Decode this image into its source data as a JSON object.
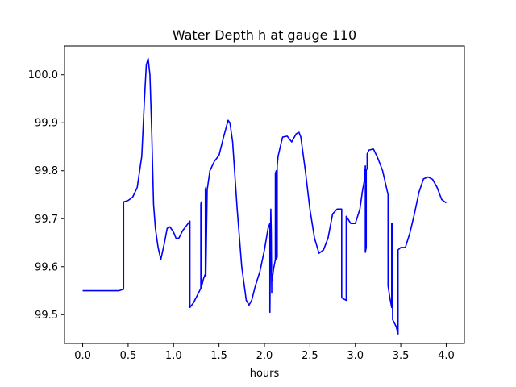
{
  "chart_data": {
    "type": "line",
    "title": "Water Depth h at gauge 110",
    "xlabel": "hours",
    "ylabel": "",
    "xlim": [
      -0.2,
      4.2
    ],
    "ylim": [
      99.44,
      100.06
    ],
    "xticks": [
      0.0,
      0.5,
      1.0,
      1.5,
      2.0,
      2.5,
      3.0,
      3.5,
      4.0
    ],
    "xtick_labels": [
      "0.0",
      "0.5",
      "1.0",
      "1.5",
      "2.0",
      "2.5",
      "3.0",
      "3.5",
      "4.0"
    ],
    "yticks": [
      99.5,
      99.6,
      99.7,
      99.8,
      99.9,
      100.0
    ],
    "ytick_labels": [
      "99.5",
      "99.6",
      "99.7",
      "99.8",
      "99.9",
      "100.0"
    ],
    "grid": false,
    "color": "#0000ff",
    "series": [
      {
        "x": [
          0.0,
          0.2,
          0.4,
          0.45,
          0.45,
          0.5,
          0.55,
          0.6,
          0.65,
          0.68,
          0.7,
          0.72,
          0.74,
          0.76,
          0.78,
          0.8,
          0.83,
          0.86,
          0.9,
          0.93,
          0.96,
          1.0,
          1.03,
          1.06,
          1.1,
          1.14,
          1.18,
          1.18,
          1.22,
          1.26,
          1.3,
          1.3,
          1.305,
          1.305,
          1.31,
          1.33,
          1.35,
          1.35,
          1.355,
          1.355,
          1.37,
          1.4,
          1.45,
          1.5,
          1.55,
          1.6,
          1.62,
          1.65,
          1.7,
          1.75,
          1.8,
          1.83,
          1.86,
          1.9,
          1.95,
          2.0,
          2.04,
          2.06,
          2.06,
          2.065,
          2.07,
          2.075,
          2.08,
          2.08,
          2.09,
          2.1,
          2.12,
          2.12,
          2.13,
          2.13,
          2.14,
          2.14,
          2.15,
          2.18,
          2.2,
          2.25,
          2.3,
          2.35,
          2.38,
          2.4,
          2.45,
          2.5,
          2.55,
          2.6,
          2.65,
          2.7,
          2.75,
          2.8,
          2.85,
          2.85,
          2.9,
          2.9,
          2.95,
          3.0,
          3.05,
          3.08,
          3.1,
          3.11,
          3.11,
          3.12,
          3.12,
          3.13,
          3.13,
          3.15,
          3.2,
          3.25,
          3.3,
          3.36,
          3.36,
          3.38,
          3.4,
          3.4,
          3.405,
          3.41,
          3.41,
          3.45,
          3.47,
          3.47,
          3.5,
          3.55,
          3.6,
          3.65,
          3.7,
          3.75,
          3.8,
          3.85,
          3.9,
          3.95,
          4.0
        ],
        "y": [
          99.55,
          99.55,
          99.55,
          99.553,
          99.735,
          99.738,
          99.745,
          99.765,
          99.83,
          99.95,
          100.02,
          100.034,
          100.0,
          99.88,
          99.73,
          99.68,
          99.64,
          99.615,
          99.65,
          99.68,
          99.683,
          99.672,
          99.658,
          99.66,
          99.675,
          99.685,
          99.695,
          99.515,
          99.525,
          99.54,
          99.555,
          99.73,
          99.735,
          99.555,
          99.56,
          99.575,
          99.585,
          99.76,
          99.765,
          99.58,
          99.76,
          99.8,
          99.82,
          99.832,
          99.87,
          99.905,
          99.9,
          99.86,
          99.72,
          99.6,
          99.53,
          99.52,
          99.53,
          99.56,
          99.59,
          99.635,
          99.68,
          99.69,
          99.505,
          99.62,
          99.72,
          99.67,
          99.545,
          99.57,
          99.58,
          99.595,
          99.615,
          99.795,
          99.8,
          99.615,
          99.62,
          99.81,
          99.83,
          99.855,
          99.87,
          99.872,
          99.86,
          99.877,
          99.88,
          99.87,
          99.8,
          99.72,
          99.66,
          99.628,
          99.635,
          99.66,
          99.71,
          99.72,
          99.72,
          99.535,
          99.53,
          99.705,
          99.69,
          99.69,
          99.72,
          99.76,
          99.78,
          99.81,
          99.63,
          99.64,
          99.8,
          99.805,
          99.835,
          99.843,
          99.845,
          99.825,
          99.8,
          99.75,
          99.56,
          99.535,
          99.515,
          99.69,
          99.69,
          99.5,
          99.49,
          99.475,
          99.46,
          99.635,
          99.64,
          99.64,
          99.67,
          99.71,
          99.755,
          99.783,
          99.787,
          99.782,
          99.765,
          99.74,
          99.733
        ]
      }
    ]
  }
}
